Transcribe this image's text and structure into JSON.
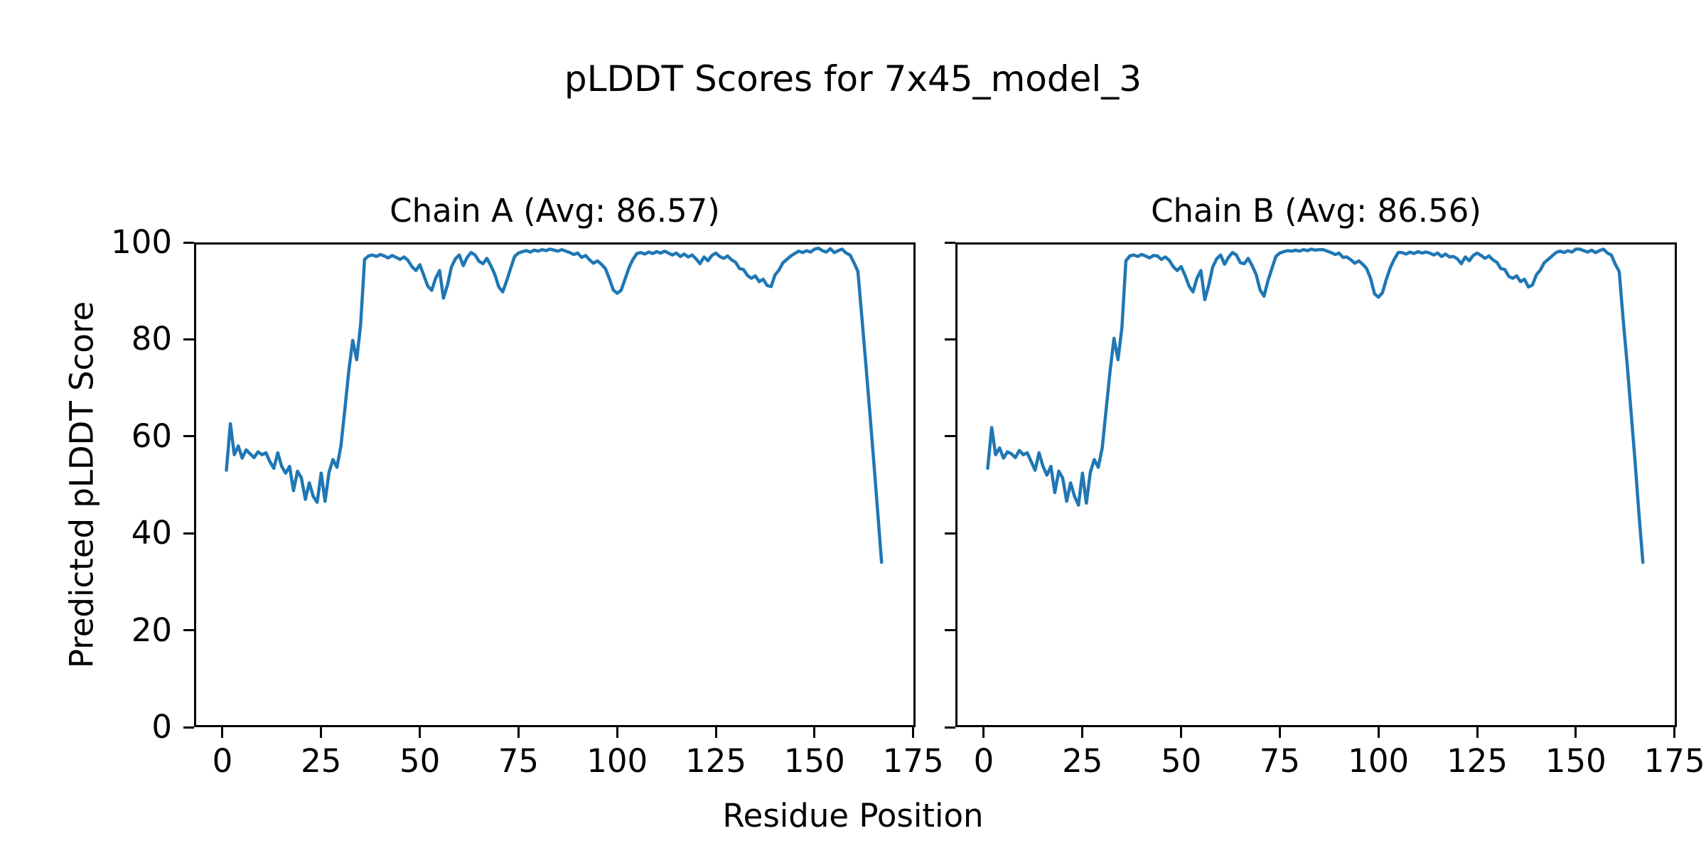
{
  "figure": {
    "background_color": "#ffffff",
    "text_color": "#000000"
  },
  "chart_data": {
    "type": "line",
    "suptitle": "pLDDT Scores for 7x45_model_3",
    "xlabel": "Residue Position",
    "ylabel": "Predicted pLDDT Score",
    "line_color": "#1f77b4",
    "axis_color": "#000000",
    "grid": false,
    "legend_position": "none",
    "xlim": [
      -7.2,
      175.6
    ],
    "ylim": [
      0,
      100
    ],
    "xticks": [
      0,
      25,
      50,
      75,
      100,
      125,
      150,
      175
    ],
    "yticks": [
      0,
      20,
      40,
      60,
      80,
      100
    ],
    "panels": [
      {
        "title": "Chain A (Avg: 86.57)",
        "chain": "A",
        "avg_plddt": 86.57,
        "x_start": 1,
        "values": [
          53.0,
          62.6,
          56.2,
          58.0,
          55.5,
          57.2,
          56.4,
          55.6,
          56.8,
          56.2,
          56.6,
          54.8,
          53.4,
          56.6,
          53.8,
          52.4,
          53.8,
          48.8,
          52.8,
          51.4,
          47.0,
          50.4,
          47.6,
          46.4,
          52.4,
          46.6,
          52.6,
          55.2,
          53.6,
          58.0,
          65.5,
          73.5,
          79.8,
          75.8,
          83.0,
          96.5,
          97.2,
          97.4,
          97.1,
          97.5,
          97.2,
          96.8,
          97.3,
          96.9,
          96.5,
          97.0,
          96.3,
          95.0,
          94.2,
          95.4,
          93.2,
          91.0,
          90.1,
          92.6,
          94.2,
          88.5,
          91.2,
          94.9,
          96.6,
          97.4,
          95.2,
          96.9,
          97.9,
          97.4,
          96.1,
          95.6,
          96.7,
          95.2,
          93.4,
          90.8,
          89.8,
          92.1,
          94.6,
          97.1,
          97.8,
          98.1,
          98.3,
          98.0,
          98.4,
          98.2,
          98.5,
          98.3,
          98.6,
          98.4,
          98.2,
          98.5,
          98.2,
          97.9,
          97.5,
          97.8,
          96.9,
          97.3,
          96.4,
          95.7,
          96.2,
          95.5,
          94.6,
          92.6,
          90.2,
          89.5,
          90.1,
          92.4,
          94.8,
          96.5,
          97.7,
          97.9,
          97.6,
          98.0,
          97.7,
          98.1,
          97.8,
          98.2,
          97.8,
          97.4,
          97.8,
          97.1,
          97.6,
          97.0,
          97.4,
          96.6,
          95.6,
          97.0,
          96.2,
          97.3,
          97.8,
          97.1,
          96.7,
          97.2,
          96.4,
          95.9,
          94.6,
          94.4,
          93.2,
          92.6,
          93.1,
          91.9,
          92.4,
          91.1,
          90.9,
          93.3,
          94.3,
          95.8,
          96.5,
          97.2,
          97.7,
          98.2,
          97.9,
          98.3,
          98.0,
          98.6,
          98.8,
          98.3,
          98.0,
          98.7,
          97.9,
          98.3,
          98.6,
          97.8,
          97.4,
          95.8,
          94.0,
          84.5,
          75.0,
          65.0,
          55.0,
          44.5,
          34.0
        ]
      },
      {
        "title": "Chain B (Avg: 86.56)",
        "chain": "B",
        "avg_plddt": 86.56,
        "x_start": 1,
        "values": [
          53.4,
          61.8,
          56.2,
          57.6,
          55.5,
          56.8,
          56.4,
          55.6,
          57.1,
          56.2,
          56.6,
          54.8,
          53.0,
          56.6,
          53.8,
          52.0,
          53.8,
          48.4,
          52.8,
          51.4,
          46.6,
          50.4,
          47.6,
          45.8,
          52.4,
          46.2,
          52.6,
          55.2,
          53.6,
          57.6,
          65.5,
          73.5,
          80.2,
          75.8,
          82.4,
          96.2,
          97.2,
          97.4,
          97.1,
          97.5,
          97.2,
          96.8,
          97.3,
          97.2,
          96.5,
          97.0,
          96.3,
          95.0,
          94.2,
          95.0,
          93.2,
          91.0,
          89.8,
          92.6,
          94.2,
          88.2,
          91.2,
          94.9,
          96.6,
          97.4,
          95.5,
          96.9,
          97.9,
          97.4,
          95.8,
          95.6,
          96.7,
          95.2,
          93.4,
          90.2,
          88.9,
          92.1,
          94.6,
          97.1,
          97.8,
          98.1,
          98.3,
          98.2,
          98.4,
          98.2,
          98.5,
          98.3,
          98.6,
          98.4,
          98.5,
          98.5,
          98.2,
          97.9,
          97.5,
          97.8,
          96.9,
          97.0,
          96.4,
          95.7,
          96.2,
          95.5,
          94.6,
          92.6,
          89.4,
          88.7,
          89.6,
          92.4,
          94.8,
          96.5,
          97.9,
          97.9,
          97.6,
          98.0,
          97.7,
          98.1,
          97.8,
          98.0,
          97.8,
          97.4,
          97.8,
          97.1,
          97.6,
          97.0,
          97.1,
          96.6,
          95.6,
          97.0,
          96.2,
          97.3,
          97.8,
          97.3,
          96.7,
          97.2,
          96.4,
          95.9,
          94.6,
          94.4,
          93.0,
          92.6,
          93.1,
          91.9,
          92.4,
          90.8,
          91.2,
          93.3,
          94.3,
          95.8,
          96.5,
          97.2,
          97.9,
          98.2,
          97.9,
          98.3,
          98.0,
          98.6,
          98.6,
          98.3,
          98.0,
          98.4,
          97.9,
          98.3,
          98.6,
          97.8,
          97.4,
          95.5,
          94.0,
          84.0,
          75.0,
          65.0,
          55.0,
          44.0,
          34.0
        ]
      }
    ]
  }
}
